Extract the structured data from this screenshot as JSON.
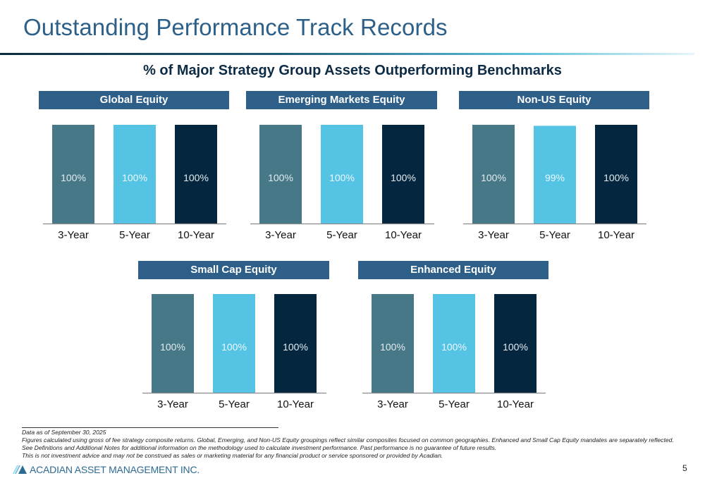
{
  "header": {
    "title": "Outstanding Performance Track Records",
    "subtitle": "% of Major Strategy Group Assets Outperforming Benchmarks"
  },
  "colors": {
    "title": "#2d6089",
    "panel_header": "#2d5f88",
    "bar_3yr": "#467887",
    "bar_5yr": "#55c3e4",
    "bar_10yr": "#04263f",
    "axis": "#8a8a8a"
  },
  "chart_data": [
    {
      "type": "bar",
      "title": "Global Equity",
      "categories": [
        "3-Year",
        "5-Year",
        "10-Year"
      ],
      "values": [
        100,
        100,
        100
      ],
      "data_labels": [
        "100%",
        "100%",
        "100%"
      ],
      "ylim": [
        0,
        100
      ],
      "grid": false
    },
    {
      "type": "bar",
      "title": "Emerging Markets Equity",
      "categories": [
        "3-Year",
        "5-Year",
        "10-Year"
      ],
      "values": [
        100,
        100,
        100
      ],
      "data_labels": [
        "100%",
        "100%",
        "100%"
      ],
      "ylim": [
        0,
        100
      ],
      "grid": false
    },
    {
      "type": "bar",
      "title": "Non-US Equity",
      "categories": [
        "3-Year",
        "5-Year",
        "10-Year"
      ],
      "values": [
        100,
        99,
        100
      ],
      "data_labels": [
        "100%",
        "99%",
        "100%"
      ],
      "ylim": [
        0,
        100
      ],
      "grid": false
    },
    {
      "type": "bar",
      "title": "Small Cap Equity",
      "categories": [
        "3-Year",
        "5-Year",
        "10-Year"
      ],
      "values": [
        100,
        100,
        100
      ],
      "data_labels": [
        "100%",
        "100%",
        "100%"
      ],
      "ylim": [
        0,
        100
      ],
      "grid": false
    },
    {
      "type": "bar",
      "title": "Enhanced Equity",
      "categories": [
        "3-Year",
        "5-Year",
        "10-Year"
      ],
      "values": [
        100,
        100,
        100
      ],
      "data_labels": [
        "100%",
        "100%",
        "100%"
      ],
      "ylim": [
        0,
        100
      ],
      "grid": false
    }
  ],
  "footer": {
    "notes": [
      "Data as of September 30, 2025",
      "Figures calculated using gross of fee strategy composite returns. Global, Emerging, and Non-US Equity groupings reflect similar composites focused on common geographies. Enhanced and Small Cap Equity mandates are separately reflected. See Definitions and Additional Notes for additional information on the methodology used to calculate investment performance. Past performance is no guarantee of future results.",
      "This is not investment advice and may not be construed as sales or marketing material for any financial product or service sponsored or provided by Acadian."
    ],
    "logo_text": "ACADIAN ASSET MANAGEMENT INC.",
    "page_number": "5"
  }
}
